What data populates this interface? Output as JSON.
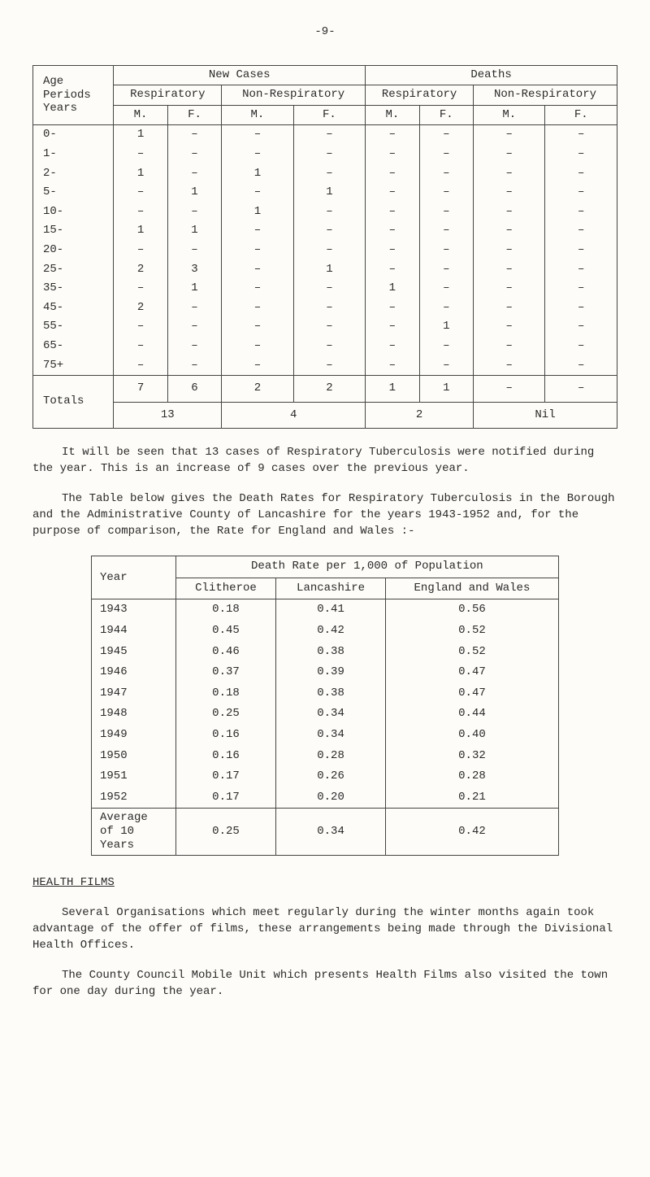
{
  "page_number": "-9-",
  "table1": {
    "header": {
      "col_age": "Age\nPeriods\nYears",
      "new_cases": "New Cases",
      "deaths": "Deaths",
      "respiratory": "Respiratory",
      "non_respiratory": "Non-Respiratory",
      "resp2": "Respiratory",
      "non_resp2": "Non-Respiratory",
      "M": "M.",
      "F": "F."
    },
    "rows": [
      {
        "age": "0-",
        "rm": "1",
        "rf": "–",
        "nrm": "–",
        "nrf": "–",
        "drm": "–",
        "drf": "–",
        "dnrm": "–",
        "dnrf": "–"
      },
      {
        "age": "1-",
        "rm": "–",
        "rf": "–",
        "nrm": "–",
        "nrf": "–",
        "drm": "–",
        "drf": "–",
        "dnrm": "–",
        "dnrf": "–"
      },
      {
        "age": "2-",
        "rm": "1",
        "rf": "–",
        "nrm": "1",
        "nrf": "–",
        "drm": "–",
        "drf": "–",
        "dnrm": "–",
        "dnrf": "–"
      },
      {
        "age": "5-",
        "rm": "–",
        "rf": "1",
        "nrm": "–",
        "nrf": "1",
        "drm": "–",
        "drf": "–",
        "dnrm": "–",
        "dnrf": "–"
      },
      {
        "age": "10-",
        "rm": "–",
        "rf": "–",
        "nrm": "1",
        "nrf": "–",
        "drm": "–",
        "drf": "–",
        "dnrm": "–",
        "dnrf": "–"
      },
      {
        "age": "15-",
        "rm": "1",
        "rf": "1",
        "nrm": "–",
        "nrf": "–",
        "drm": "–",
        "drf": "–",
        "dnrm": "–",
        "dnrf": "–"
      },
      {
        "age": "20-",
        "rm": "–",
        "rf": "–",
        "nrm": "–",
        "nrf": "–",
        "drm": "–",
        "drf": "–",
        "dnrm": "–",
        "dnrf": "–"
      },
      {
        "age": "25-",
        "rm": "2",
        "rf": "3",
        "nrm": "–",
        "nrf": "1",
        "drm": "–",
        "drf": "–",
        "dnrm": "–",
        "dnrf": "–"
      },
      {
        "age": "35-",
        "rm": "–",
        "rf": "1",
        "nrm": "–",
        "nrf": "–",
        "drm": "1",
        "drf": "–",
        "dnrm": "–",
        "dnrf": "–"
      },
      {
        "age": "45-",
        "rm": "2",
        "rf": "–",
        "nrm": "–",
        "nrf": "–",
        "drm": "–",
        "drf": "–",
        "dnrm": "–",
        "dnrf": "–"
      },
      {
        "age": "55-",
        "rm": "–",
        "rf": "–",
        "nrm": "–",
        "nrf": "–",
        "drm": "–",
        "drf": "1",
        "dnrm": "–",
        "dnrf": "–"
      },
      {
        "age": "65-",
        "rm": "–",
        "rf": "–",
        "nrm": "–",
        "nrf": "–",
        "drm": "–",
        "drf": "–",
        "dnrm": "–",
        "dnrf": "–"
      },
      {
        "age": "75+",
        "rm": "–",
        "rf": "–",
        "nrm": "–",
        "nrf": "–",
        "drm": "–",
        "drf": "–",
        "dnrm": "–",
        "dnrf": "–"
      }
    ],
    "totals": {
      "label": "Totals",
      "rm": "7",
      "rf": "6",
      "r_sum": "13",
      "nrm": "2",
      "nrf": "2",
      "nr_sum": "4",
      "drm": "1",
      "drf": "1",
      "dr_sum": "2",
      "dnrm": "–",
      "dnrf": "–",
      "dnr_sum": "Nil"
    }
  },
  "para1": "It will be seen that 13 cases of Respiratory Tuberculosis were notified during the year. This is an increase of 9 cases over the previous year.",
  "para2": "The Table below gives the Death Rates for Respiratory Tuberculosis in the Borough and the Administrative County of Lancashire for the years 1943-1952 and, for the purpose of comparison, the Rate for England and Wales :-",
  "table2": {
    "header": {
      "year": "Year",
      "title": "Death Rate per 1,000 of Population",
      "clitheroe": "Clitheroe",
      "lancashire": "Lancashire",
      "england": "England and Wales"
    },
    "rows": [
      {
        "year": "1943",
        "c": "0.18",
        "l": "0.41",
        "e": "0.56"
      },
      {
        "year": "1944",
        "c": "0.45",
        "l": "0.42",
        "e": "0.52"
      },
      {
        "year": "1945",
        "c": "0.46",
        "l": "0.38",
        "e": "0.52"
      },
      {
        "year": "1946",
        "c": "0.37",
        "l": "0.39",
        "e": "0.47"
      },
      {
        "year": "1947",
        "c": "0.18",
        "l": "0.38",
        "e": "0.47"
      },
      {
        "year": "1948",
        "c": "0.25",
        "l": "0.34",
        "e": "0.44"
      },
      {
        "year": "1949",
        "c": "0.16",
        "l": "0.34",
        "e": "0.40"
      },
      {
        "year": "1950",
        "c": "0.16",
        "l": "0.28",
        "e": "0.32"
      },
      {
        "year": "1951",
        "c": "0.17",
        "l": "0.26",
        "e": "0.28"
      },
      {
        "year": "1952",
        "c": "0.17",
        "l": "0.20",
        "e": "0.21"
      }
    ],
    "average": {
      "label": "Average\nof 10\nYears",
      "c": "0.25",
      "l": "0.34",
      "e": "0.42"
    }
  },
  "heading_films": "HEALTH FILMS",
  "para3": "Several Organisations which meet regularly during the winter months again took advantage of the offer of films, these arrangements being made through the Divisional Health Offices.",
  "para4": "The County Council Mobile Unit which presents Health Films also visited the town for one day during the year."
}
